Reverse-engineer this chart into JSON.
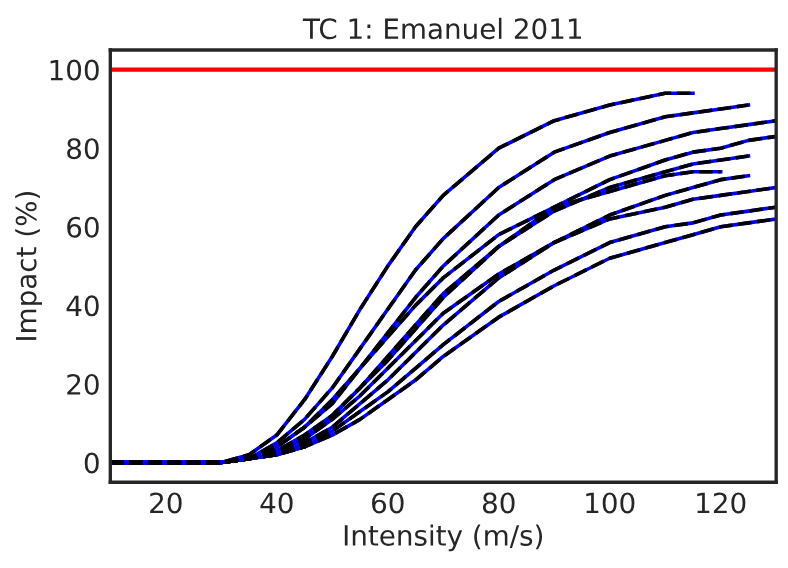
{
  "chart_data": {
    "type": "line",
    "title": "TC 1: Emanuel 2011",
    "xlabel": "Intensity (m/s)",
    "ylabel": "Impact (%)",
    "x": [
      10,
      25,
      30,
      35,
      40,
      45,
      50,
      55,
      60,
      65,
      70,
      80,
      90,
      100,
      110,
      115,
      120,
      125,
      130
    ],
    "xlim": [
      10,
      130
    ],
    "xticks": [
      20,
      40,
      60,
      80,
      100,
      120
    ],
    "ylim": [
      -5,
      105
    ],
    "yticks": [
      0,
      20,
      40,
      60,
      80,
      100
    ],
    "grid": false,
    "legend": false,
    "ref_lines": [
      {
        "axis": "y",
        "value": 100,
        "color": "#ff0000",
        "line_style": "solid"
      }
    ],
    "series": [
      {
        "color": "#0000ff",
        "line_style": "solid",
        "values": [
          0,
          0,
          0,
          2,
          7,
          16,
          27,
          39,
          50,
          60,
          68,
          80,
          87,
          91,
          94,
          94,
          null,
          null,
          null
        ]
      },
      {
        "color": "#0000ff",
        "line_style": "solid",
        "values": [
          0,
          0,
          0,
          1,
          5,
          11,
          19,
          29,
          39,
          49,
          57,
          70,
          79,
          84,
          88,
          89,
          90,
          91,
          null
        ]
      },
      {
        "color": "#0000ff",
        "line_style": "solid",
        "values": [
          0,
          0,
          0,
          1,
          4,
          9,
          15,
          24,
          33,
          42,
          50,
          63,
          72,
          78,
          82,
          84,
          85,
          86,
          87
        ]
      },
      {
        "color": "#0000ff",
        "line_style": "solid",
        "values": [
          0,
          0,
          0,
          1,
          3,
          7,
          12,
          19,
          27,
          35,
          43,
          55,
          64,
          70,
          74,
          76,
          77,
          78,
          null
        ]
      },
      {
        "color": "#0000ff",
        "line_style": "solid",
        "values": [
          0,
          0,
          0,
          1,
          3,
          6,
          12,
          19,
          26,
          34,
          42,
          55,
          65,
          72,
          77,
          79,
          80,
          82,
          83
        ]
      },
      {
        "color": "#0000ff",
        "line_style": "solid",
        "values": [
          0,
          0,
          0,
          1,
          3,
          6,
          11,
          17,
          24,
          31,
          38,
          48,
          56,
          62,
          65,
          67,
          68,
          69,
          70
        ]
      },
      {
        "color": "#0000ff",
        "line_style": "solid",
        "values": [
          0,
          0,
          0,
          1,
          2,
          5,
          9,
          15,
          21,
          28,
          35,
          47,
          56,
          63,
          68,
          70,
          72,
          73,
          null
        ]
      },
      {
        "color": "#0000ff",
        "line_style": "solid",
        "values": [
          0,
          0,
          0,
          1,
          2,
          4,
          8,
          13,
          18,
          24,
          30,
          41,
          49,
          56,
          60,
          61,
          63,
          64,
          65
        ]
      },
      {
        "color": "#0000ff",
        "line_style": "solid",
        "values": [
          0,
          0,
          0,
          1,
          2,
          4,
          7,
          11,
          16,
          21,
          27,
          37,
          45,
          52,
          56,
          58,
          60,
          61,
          62
        ]
      },
      {
        "color": "#0000ff",
        "line_style": "solid",
        "values": [
          0,
          0,
          0,
          1,
          4,
          9,
          16,
          24,
          32,
          40,
          47,
          58,
          65,
          69,
          73,
          74,
          74,
          null,
          null
        ]
      },
      {
        "color": "#000000",
        "line_style": "dashed",
        "values": [
          0,
          0,
          0,
          2,
          7,
          16,
          27,
          39,
          50,
          60,
          68,
          80,
          87,
          91,
          94,
          94,
          null,
          null,
          null
        ]
      },
      {
        "color": "#000000",
        "line_style": "dashed",
        "values": [
          0,
          0,
          0,
          1,
          5,
          11,
          19,
          29,
          39,
          49,
          57,
          70,
          79,
          84,
          88,
          89,
          90,
          91,
          null
        ]
      },
      {
        "color": "#000000",
        "line_style": "dashed",
        "values": [
          0,
          0,
          0,
          1,
          4,
          9,
          15,
          24,
          33,
          42,
          50,
          63,
          72,
          78,
          82,
          84,
          85,
          86,
          87
        ]
      },
      {
        "color": "#000000",
        "line_style": "dashed",
        "values": [
          0,
          0,
          0,
          1,
          3,
          7,
          12,
          19,
          27,
          35,
          43,
          55,
          64,
          70,
          74,
          76,
          77,
          78,
          null
        ]
      },
      {
        "color": "#000000",
        "line_style": "dashed",
        "values": [
          0,
          0,
          0,
          1,
          3,
          6,
          12,
          19,
          26,
          34,
          42,
          55,
          65,
          72,
          77,
          79,
          80,
          82,
          83
        ]
      },
      {
        "color": "#000000",
        "line_style": "dashed",
        "values": [
          0,
          0,
          0,
          1,
          3,
          6,
          11,
          17,
          24,
          31,
          38,
          48,
          56,
          62,
          65,
          67,
          68,
          69,
          70
        ]
      },
      {
        "color": "#000000",
        "line_style": "dashed",
        "values": [
          0,
          0,
          0,
          1,
          2,
          5,
          9,
          15,
          21,
          28,
          35,
          47,
          56,
          63,
          68,
          70,
          72,
          73,
          null
        ]
      },
      {
        "color": "#000000",
        "line_style": "dashed",
        "values": [
          0,
          0,
          0,
          1,
          2,
          4,
          8,
          13,
          18,
          24,
          30,
          41,
          49,
          56,
          60,
          61,
          63,
          64,
          65
        ]
      },
      {
        "color": "#000000",
        "line_style": "dashed",
        "values": [
          0,
          0,
          0,
          1,
          2,
          4,
          7,
          11,
          16,
          21,
          27,
          37,
          45,
          52,
          56,
          58,
          60,
          61,
          62
        ]
      },
      {
        "color": "#000000",
        "line_style": "dashed",
        "values": [
          0,
          0,
          0,
          1,
          4,
          9,
          16,
          24,
          32,
          40,
          47,
          58,
          65,
          69,
          73,
          74,
          74,
          null,
          null
        ]
      }
    ]
  }
}
